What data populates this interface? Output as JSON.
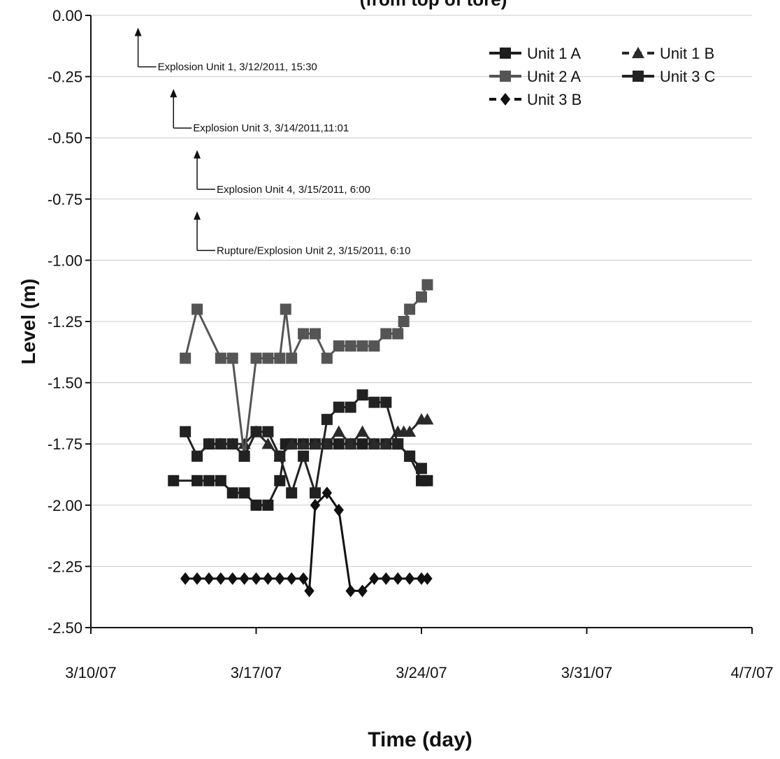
{
  "chart_data": {
    "type": "line",
    "title": "(from top of tore)",
    "xlabel": "Time (day)",
    "ylabel": "Level (m)",
    "xlim": [
      "3/10/07",
      "4/7/07"
    ],
    "ylim": [
      -2.5,
      0.0
    ],
    "x_ticks": [
      "3/10/07",
      "3/17/07",
      "3/24/07",
      "3/31/07",
      "4/7/07"
    ],
    "y_ticks": [
      "0.00",
      "-0.25",
      "-0.50",
      "-0.75",
      "-1.00",
      "-1.25",
      "-1.50",
      "-1.75",
      "-2.00",
      "-2.25",
      "-2.50"
    ],
    "grid": true,
    "legend_position": "top-right",
    "colors": {
      "Unit 1 A": "#1e1e1e",
      "Unit 1 B": "#2a2a2a",
      "Unit 2 A": "#555555",
      "Unit 3 C": "#222222",
      "Unit 3 B": "#111111"
    },
    "series": [
      {
        "name": "Unit 1 A",
        "marker": "square",
        "x": [
          "3/13/07 12:00",
          "3/14/07 12:00",
          "3/15/07 00:00",
          "3/15/07 12:00",
          "3/16/07 00:00",
          "3/16/07 12:00",
          "3/17/07 00:00",
          "3/17/07 12:00",
          "3/18/07 00:00",
          "3/18/07 06:00",
          "3/18/07 12:00",
          "3/19/07 00:00",
          "3/19/07 12:00",
          "3/20/07 00:00",
          "3/20/07 12:00",
          "3/21/07 00:00",
          "3/21/07 12:00",
          "3/22/07 00:00",
          "3/22/07 12:00",
          "3/23/07 00:00",
          "3/23/07 12:00",
          "3/24/07 00:00",
          "3/24/07 06:00"
        ],
        "y": [
          -1.9,
          -1.9,
          -1.9,
          -1.9,
          -1.95,
          -1.95,
          -2.0,
          -2.0,
          -1.9,
          -1.75,
          -1.75,
          -1.75,
          -1.75,
          -1.75,
          -1.75,
          -1.75,
          -1.75,
          -1.75,
          -1.75,
          -1.75,
          -1.8,
          -1.9,
          -1.9
        ]
      },
      {
        "name": "Unit 1 B",
        "marker": "triangle",
        "x": [
          "3/15/07 00:00",
          "3/15/07 12:00",
          "3/16/07 00:00",
          "3/16/07 12:00",
          "3/17/07 00:00",
          "3/17/07 12:00",
          "3/18/07 00:00",
          "3/18/07 12:00",
          "3/19/07 00:00",
          "3/19/07 12:00",
          "3/20/07 00:00",
          "3/20/07 12:00",
          "3/21/07 00:00",
          "3/21/07 12:00",
          "3/22/07 00:00",
          "3/22/07 12:00",
          "3/23/07 00:00",
          "3/23/07 06:00",
          "3/23/07 12:00",
          "3/24/07 00:00",
          "3/24/07 06:00"
        ],
        "y": [
          -1.75,
          -1.75,
          -1.75,
          -1.75,
          -1.7,
          -1.75,
          -1.8,
          -1.75,
          -1.75,
          -1.75,
          -1.75,
          -1.7,
          -1.75,
          -1.7,
          -1.75,
          -1.75,
          -1.7,
          -1.7,
          -1.7,
          -1.65,
          -1.65
        ]
      },
      {
        "name": "Unit 2 A",
        "marker": "square",
        "x": [
          "3/14/07 00:00",
          "3/14/07 12:00",
          "3/15/07 12:00",
          "3/16/07 00:00",
          "3/16/07 12:00",
          "3/17/07 00:00",
          "3/17/07 12:00",
          "3/18/07 00:00",
          "3/18/07 06:00",
          "3/18/07 12:00",
          "3/19/07 00:00",
          "3/19/07 12:00",
          "3/20/07 00:00",
          "3/20/07 12:00",
          "3/21/07 00:00",
          "3/21/07 12:00",
          "3/22/07 00:00",
          "3/22/07 12:00",
          "3/23/07 00:00",
          "3/23/07 06:00",
          "3/23/07 12:00",
          "3/24/07 00:00",
          "3/24/07 06:00"
        ],
        "y": [
          -1.4,
          -1.2,
          -1.4,
          -1.4,
          -1.8,
          -1.4,
          -1.4,
          -1.4,
          -1.2,
          -1.4,
          -1.3,
          -1.3,
          -1.4,
          -1.35,
          -1.35,
          -1.35,
          -1.35,
          -1.3,
          -1.3,
          -1.25,
          -1.2,
          -1.15,
          -1.1
        ]
      },
      {
        "name": "Unit 3 C",
        "marker": "square",
        "x": [
          "3/14/07 00:00",
          "3/14/07 12:00",
          "3/15/07 00:00",
          "3/15/07 12:00",
          "3/16/07 00:00",
          "3/16/07 12:00",
          "3/17/07 00:00",
          "3/17/07 12:00",
          "3/18/07 00:00",
          "3/18/07 12:00",
          "3/19/07 00:00",
          "3/19/07 12:00",
          "3/20/07 00:00",
          "3/20/07 12:00",
          "3/21/07 00:00",
          "3/21/07 12:00",
          "3/22/07 00:00",
          "3/22/07 12:00",
          "3/23/07 00:00",
          "3/23/07 12:00",
          "3/24/07 00:00"
        ],
        "y": [
          -1.7,
          -1.8,
          -1.75,
          -1.75,
          -1.75,
          -1.8,
          -1.7,
          -1.7,
          -1.8,
          -1.95,
          -1.8,
          -1.95,
          -1.65,
          -1.6,
          -1.6,
          -1.55,
          -1.58,
          -1.58,
          -1.75,
          -1.8,
          -1.85
        ]
      },
      {
        "name": "Unit 3 B",
        "marker": "diamond",
        "x": [
          "3/14/07 00:00",
          "3/14/07 12:00",
          "3/15/07 00:00",
          "3/15/07 12:00",
          "3/16/07 00:00",
          "3/16/07 12:00",
          "3/17/07 00:00",
          "3/17/07 12:00",
          "3/18/07 00:00",
          "3/18/07 12:00",
          "3/19/07 00:00",
          "3/19/07 06:00",
          "3/19/07 12:00",
          "3/20/07 00:00",
          "3/20/07 12:00",
          "3/21/07 00:00",
          "3/21/07 12:00",
          "3/22/07 00:00",
          "3/22/07 12:00",
          "3/23/07 00:00",
          "3/23/07 12:00",
          "3/24/07 00:00",
          "3/24/07 06:00"
        ],
        "y": [
          -2.3,
          -2.3,
          -2.3,
          -2.3,
          -2.3,
          -2.3,
          -2.3,
          -2.3,
          -2.3,
          -2.3,
          -2.3,
          -2.35,
          -2.0,
          -1.95,
          -2.02,
          -2.35,
          -2.35,
          -2.3,
          -2.3,
          -2.3,
          -2.3,
          -2.3,
          -2.3
        ]
      }
    ],
    "annotations": [
      {
        "text": "Explosion Unit 1, 3/12/2011, 15:30",
        "x": "3/12/07 00:00",
        "y": -0.25
      },
      {
        "text": "Explosion Unit 3, 3/14/2011,11:01",
        "x": "3/13/07 12:00",
        "y": -0.5
      },
      {
        "text": "Explosion Unit  4, 3/15/2011, 6:00",
        "x": "3/14/07 12:00",
        "y": -0.75
      },
      {
        "text": "Rupture/Explosion Unit 2, 3/15/2011, 6:10",
        "x": "3/14/07 12:00",
        "y": -1.0
      }
    ]
  }
}
